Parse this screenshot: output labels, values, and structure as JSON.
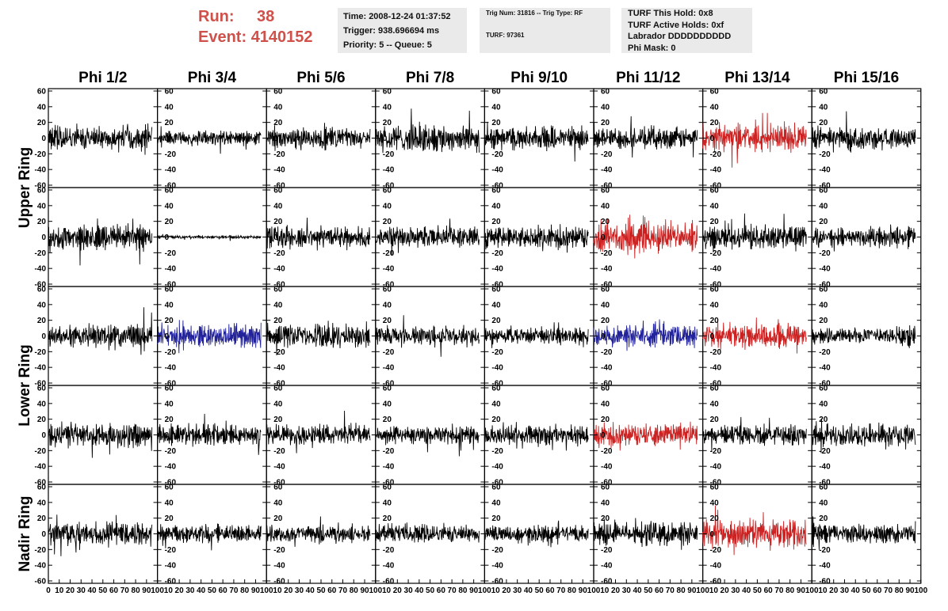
{
  "header": {
    "run_label": "Run:",
    "run_value": "38",
    "event_label": "Event:",
    "event_value": "4140152",
    "info1": [
      "Time: 2008-12-24 01:37:52",
      "Trigger: 938.696694 ms",
      "Priority: 5 -- Queue: 5"
    ],
    "info2": [
      "Trig Num: 31816 -- Trig Type: RF",
      "TURF: 97361"
    ],
    "info3": [
      "TURF This Hold: 0x8",
      "TURF Active Holds: 0xf",
      "Labrador DDDDDDDDDD",
      "Phi Mask: 0"
    ]
  },
  "colors": {
    "normal": "#000000",
    "red": "#cc2222",
    "blue": "#22229a",
    "header_red": "#d0504a",
    "info_bg": "#eaeaea"
  },
  "chart_data": {
    "type": "line",
    "columns": [
      "Phi 1/2",
      "Phi 3/4",
      "Phi 5/6",
      "Phi 7/8",
      "Phi 9/10",
      "Phi 11/12",
      "Phi 13/14",
      "Phi 15/16"
    ],
    "ring_labels": [
      {
        "text": "Upper Ring",
        "rows": [
          0,
          1
        ]
      },
      {
        "text": "Lower Ring",
        "rows": [
          2,
          3
        ]
      },
      {
        "text": "Nadir Ring",
        "rows": [
          4,
          4
        ]
      }
    ],
    "xlim": [
      0,
      100
    ],
    "ylim": [
      -60,
      60
    ],
    "yticks": [
      -60,
      -40,
      -20,
      0,
      20,
      40,
      60
    ],
    "x_tick_labels": [
      "0",
      "10",
      "20",
      "30",
      "40",
      "50",
      "60",
      "70",
      "80",
      "90",
      "100"
    ],
    "trace_xlim": [
      0,
      95
    ],
    "grid": false,
    "panels": [
      [
        {
          "c": "black",
          "a": 16,
          "s": 1
        },
        {
          "c": "black",
          "a": 9,
          "s": 2
        },
        {
          "c": "black",
          "a": 13,
          "s": 3
        },
        {
          "c": "black",
          "a": 18,
          "s": 4
        },
        {
          "c": "black",
          "a": 15,
          "s": 5
        },
        {
          "c": "black",
          "a": 14,
          "s": 6
        },
        {
          "c": "red",
          "a": 17,
          "s": 7
        },
        {
          "c": "black",
          "a": 15,
          "s": 8
        }
      ],
      [
        {
          "c": "black",
          "a": 16,
          "s": 9
        },
        {
          "c": "black",
          "a": 2,
          "s": 10
        },
        {
          "c": "black",
          "a": 15,
          "s": 11
        },
        {
          "c": "black",
          "a": 13,
          "s": 12
        },
        {
          "c": "black",
          "a": 14,
          "s": 13
        },
        {
          "c": "red",
          "a": 19,
          "s": 14
        },
        {
          "c": "black",
          "a": 15,
          "s": 15
        },
        {
          "c": "black",
          "a": 14,
          "s": 16
        }
      ],
      [
        {
          "c": "black",
          "a": 15,
          "s": 17
        },
        {
          "c": "blue",
          "a": 14,
          "s": 18
        },
        {
          "c": "black",
          "a": 16,
          "s": 19
        },
        {
          "c": "black",
          "a": 13,
          "s": 20
        },
        {
          "c": "black",
          "a": 10,
          "s": 21
        },
        {
          "c": "blue",
          "a": 14,
          "s": 22
        },
        {
          "c": "red",
          "a": 15,
          "s": 23
        },
        {
          "c": "black",
          "a": 11,
          "s": 24
        }
      ],
      [
        {
          "c": "black",
          "a": 15,
          "s": 25
        },
        {
          "c": "black",
          "a": 13,
          "s": 26
        },
        {
          "c": "black",
          "a": 13,
          "s": 27
        },
        {
          "c": "black",
          "a": 12,
          "s": 28
        },
        {
          "c": "black",
          "a": 12,
          "s": 29
        },
        {
          "c": "red",
          "a": 14,
          "s": 30
        },
        {
          "c": "black",
          "a": 13,
          "s": 31
        },
        {
          "c": "black",
          "a": 15,
          "s": 32
        }
      ],
      [
        {
          "c": "black",
          "a": 15,
          "s": 33
        },
        {
          "c": "black",
          "a": 11,
          "s": 34
        },
        {
          "c": "black",
          "a": 11,
          "s": 35
        },
        {
          "c": "black",
          "a": 12,
          "s": 36
        },
        {
          "c": "black",
          "a": 11,
          "s": 37
        },
        {
          "c": "black",
          "a": 15,
          "s": 38
        },
        {
          "c": "red",
          "a": 18,
          "s": 39
        },
        {
          "c": "black",
          "a": 12,
          "s": 40
        }
      ]
    ]
  }
}
